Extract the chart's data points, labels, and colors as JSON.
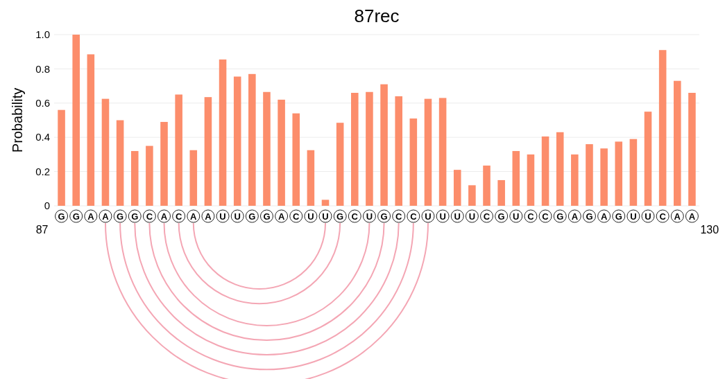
{
  "chart_data": {
    "type": "bar",
    "title": "87rec",
    "ylabel": "Probability",
    "categories": [
      "G",
      "G",
      "A",
      "A",
      "G",
      "G",
      "C",
      "A",
      "C",
      "A",
      "A",
      "U",
      "U",
      "G",
      "G",
      "A",
      "C",
      "U",
      "U",
      "G",
      "C",
      "U",
      "G",
      "C",
      "C",
      "U",
      "U",
      "U",
      "U",
      "C",
      "G",
      "U",
      "C",
      "C",
      "G",
      "A",
      "G",
      "A",
      "G",
      "U",
      "U",
      "C",
      "A",
      "A"
    ],
    "values": [
      0.56,
      1.0,
      0.885,
      0.625,
      0.5,
      0.32,
      0.35,
      0.49,
      0.65,
      0.325,
      0.635,
      0.855,
      0.755,
      0.77,
      0.665,
      0.62,
      0.54,
      0.325,
      0.035,
      0.485,
      0.66,
      0.665,
      0.71,
      0.64,
      0.51,
      0.625,
      0.63,
      0.21,
      0.12,
      0.235,
      0.15,
      0.32,
      0.3,
      0.405,
      0.43,
      0.3,
      0.36,
      0.335,
      0.375,
      0.39,
      0.55,
      0.91,
      0.73,
      0.66
    ],
    "color": "#fc8d6b",
    "ylim": [
      0,
      1
    ],
    "yticks": [
      0,
      0.2,
      0.4,
      0.6,
      0.8,
      {
        "value": 1,
        "label": "1.0"
      }
    ],
    "grid": "y",
    "annotations": [
      "87",
      "130"
    ]
  }
}
